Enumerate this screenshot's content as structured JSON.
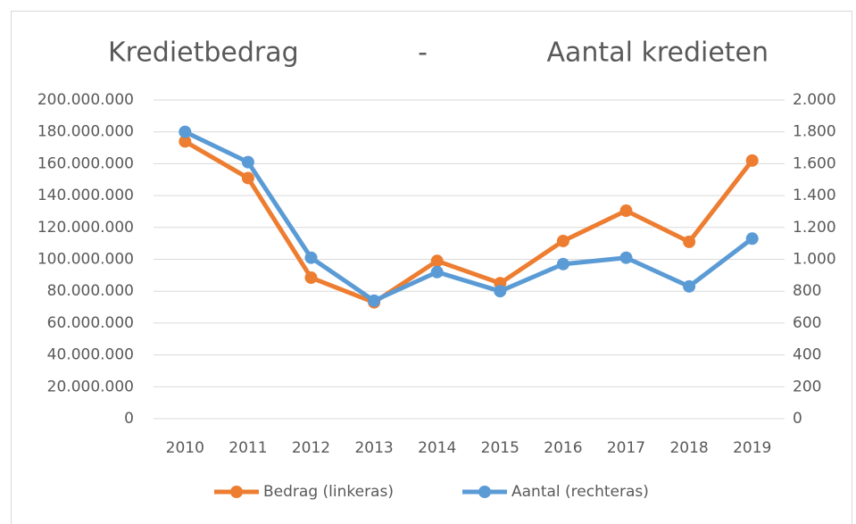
{
  "chart_data": {
    "type": "line",
    "title": "Kredietbedrag              -              Aantal kredieten",
    "categories": [
      "2010",
      "2011",
      "2012",
      "2013",
      "2014",
      "2015",
      "2016",
      "2017",
      "2018",
      "2019"
    ],
    "series": [
      {
        "name": "Bedrag (linkeras)",
        "color": "#ed7d31",
        "values": [
          174000000,
          151000000,
          88500000,
          73000000,
          99000000,
          85000000,
          111500000,
          130500000,
          111000000,
          162000000
        ]
      },
      {
        "name": "Aantal (rechteras)",
        "color": "#5b9bd5",
        "axis": "y2",
        "values": [
          1800,
          1610,
          1010,
          740,
          920,
          800,
          970,
          1010,
          830,
          1130
        ]
      }
    ],
    "ylim": [
      0,
      200000000
    ],
    "yticks": [
      0,
      {
        "value": 20000000,
        "label": "20.000.000"
      },
      {
        "value": 40000000,
        "label": "40.000.000"
      },
      {
        "value": 60000000,
        "label": "60.000.000"
      },
      {
        "value": 80000000,
        "label": "80.000.000"
      },
      {
        "value": 100000000,
        "label": "100.000.000"
      },
      {
        "value": 120000000,
        "label": "120.000.000"
      },
      {
        "value": 140000000,
        "label": "140.000.000"
      },
      {
        "value": 160000000,
        "label": "160.000.000"
      },
      {
        "value": 180000000,
        "label": "180.000.000"
      },
      {
        "value": 200000000,
        "label": "200.000.000"
      }
    ],
    "y2lim": [
      0,
      2000
    ],
    "y2ticks": [
      0,
      200,
      400,
      600,
      800,
      {
        "value": 1000,
        "label": "1.000"
      },
      {
        "value": 1200,
        "label": "1.200"
      },
      {
        "value": 1400,
        "label": "1.400"
      },
      {
        "value": 1600,
        "label": "1.600"
      },
      {
        "value": 1800,
        "label": "1.800"
      },
      {
        "value": 2000,
        "label": "2.000"
      }
    ],
    "grid": true,
    "legend": "bottom"
  }
}
